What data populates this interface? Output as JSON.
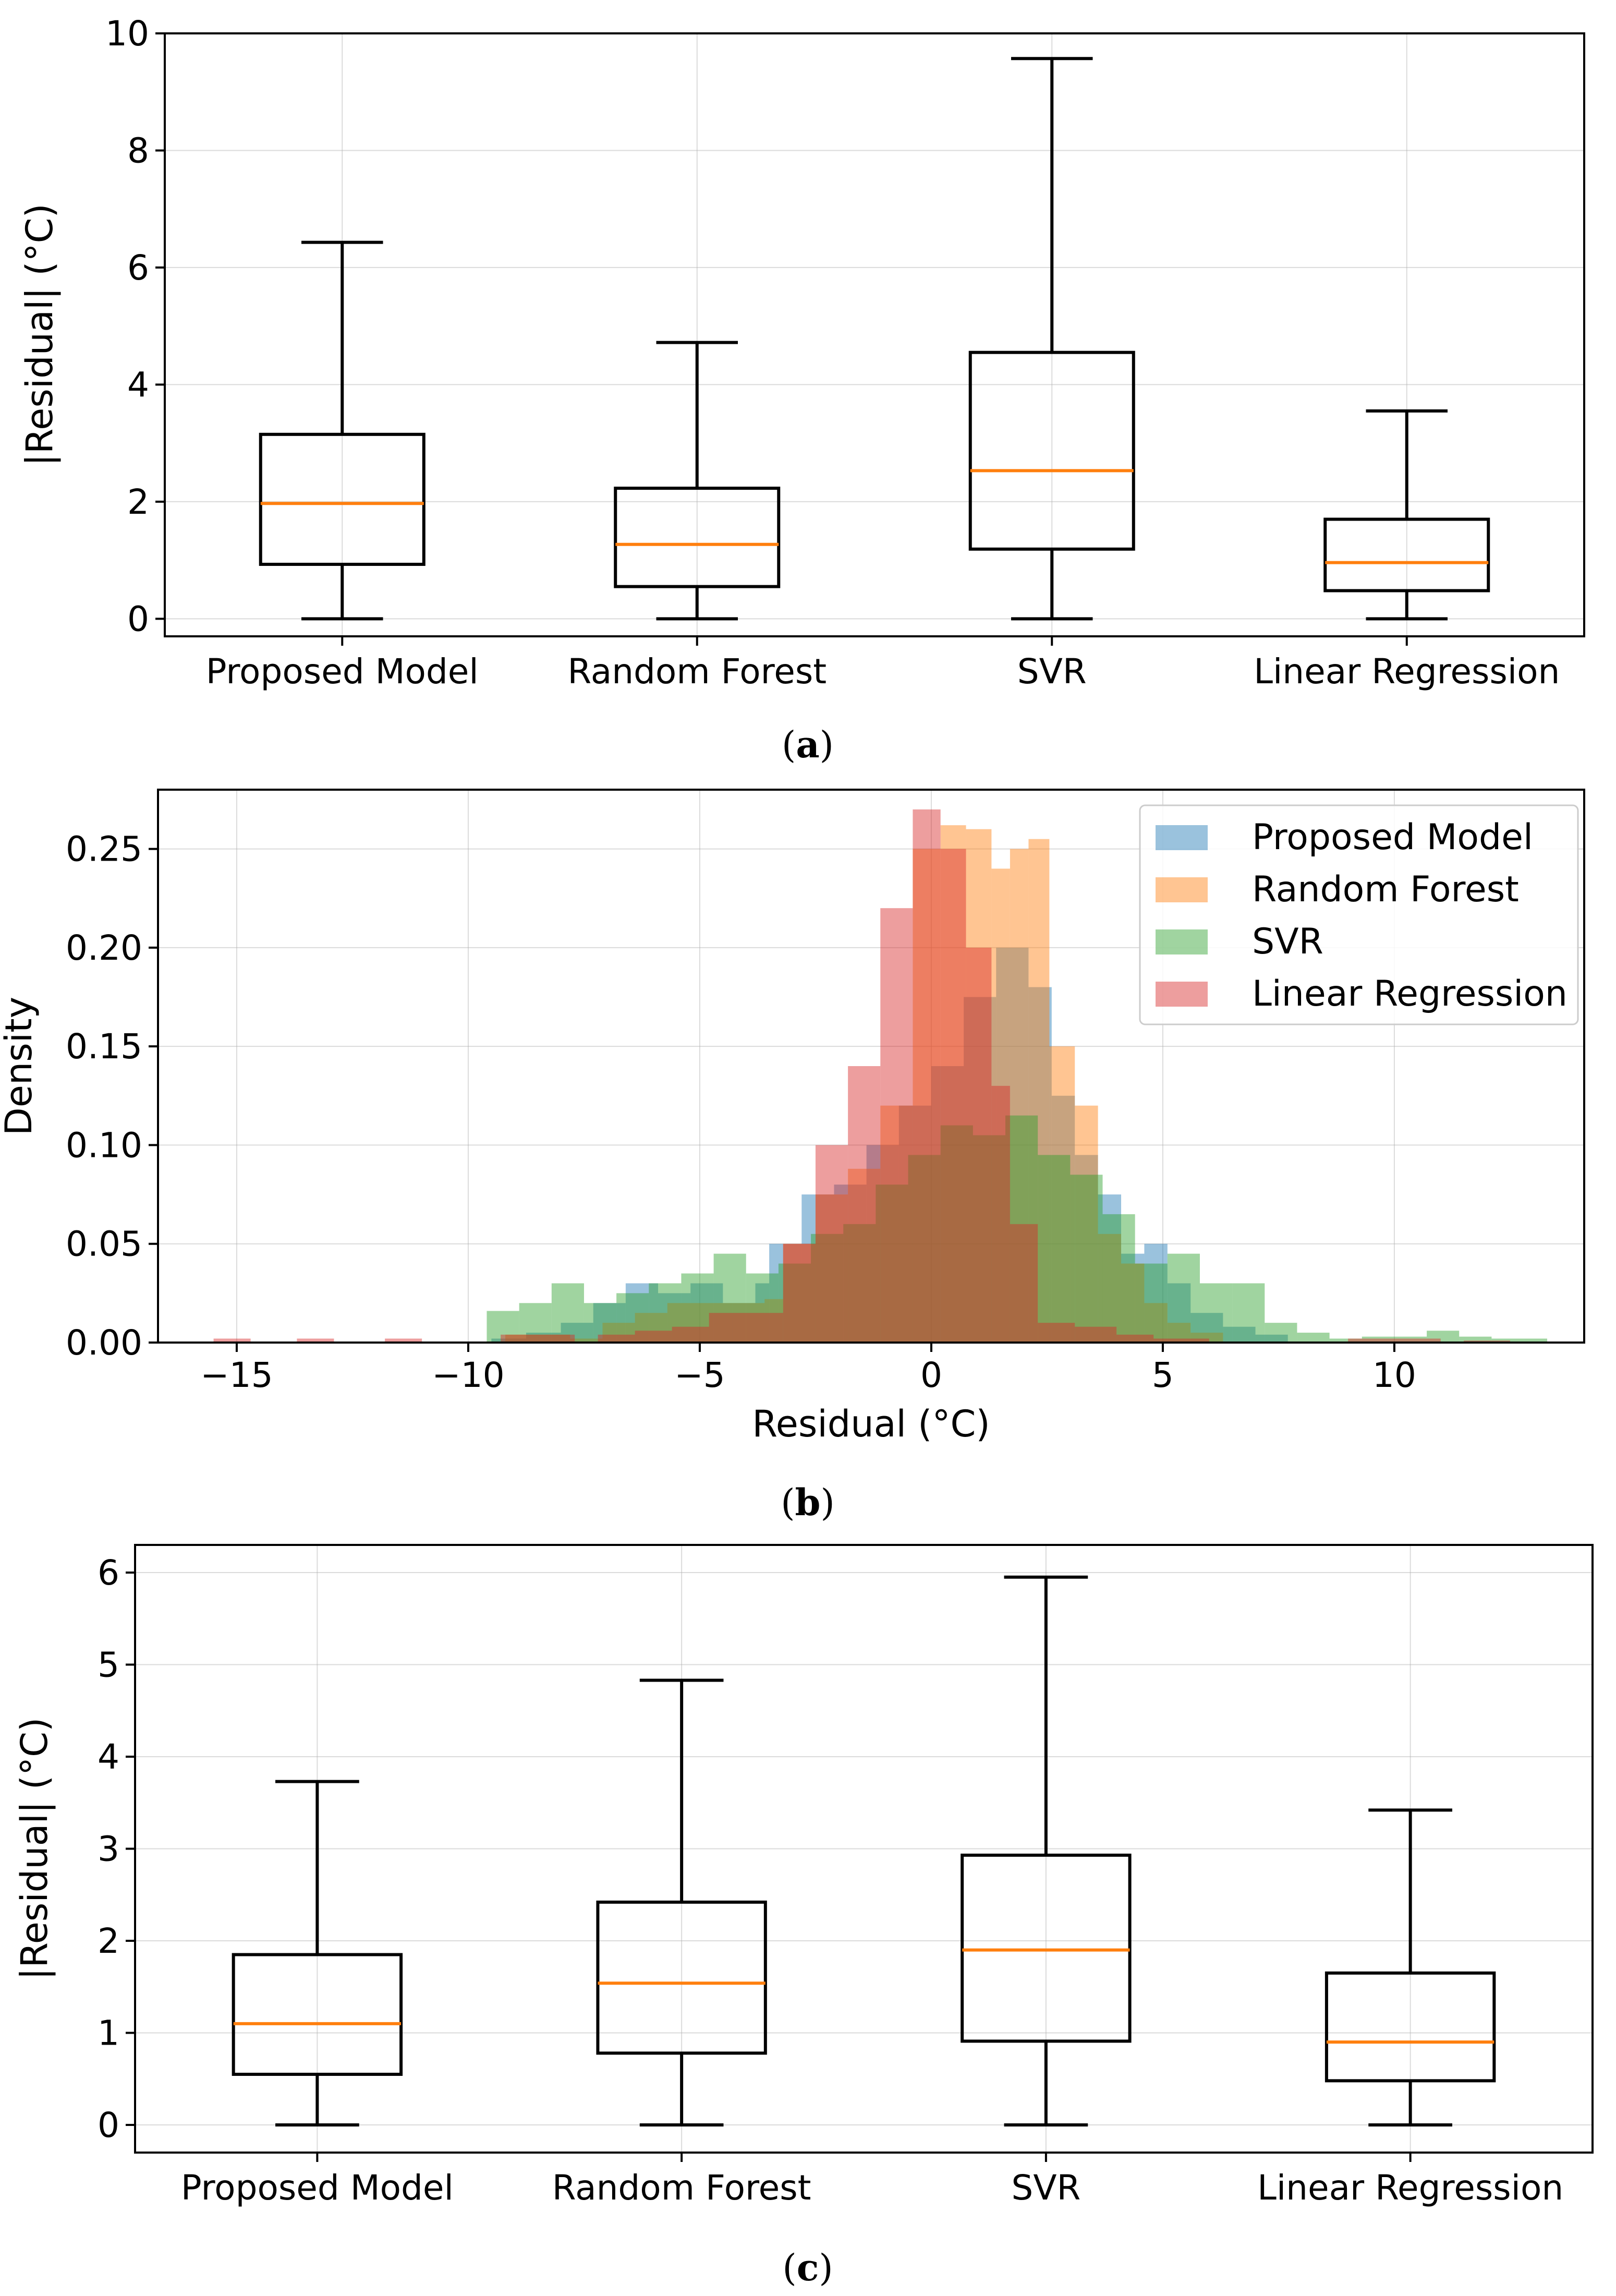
{
  "chart_data": [
    {
      "type": "box",
      "panel_label": "a",
      "title": "",
      "xlabel": "",
      "ylabel": "|Residual| (°C)",
      "ylim": [
        -0.3,
        10
      ],
      "yticks": [
        0,
        2,
        4,
        6,
        8,
        10
      ],
      "grid": true,
      "categories": [
        "Proposed Model",
        "Random Forest",
        "SVR",
        "Linear Regression"
      ],
      "boxes": [
        {
          "whisker_low": 0,
          "q1": 0.93,
          "median": 1.97,
          "q3": 3.15,
          "whisker_high": 6.43
        },
        {
          "whisker_low": 0,
          "q1": 0.55,
          "median": 1.27,
          "q3": 2.23,
          "whisker_high": 4.72
        },
        {
          "whisker_low": 0,
          "q1": 1.19,
          "median": 2.53,
          "q3": 4.55,
          "whisker_high": 9.57
        },
        {
          "whisker_low": 0,
          "q1": 0.48,
          "median": 0.96,
          "q3": 1.7,
          "whisker_high": 3.55
        }
      ],
      "colors": {
        "box": "#000000",
        "median": "#ff7f0e"
      }
    },
    {
      "type": "histogram",
      "panel_label": "b",
      "title": "",
      "xlabel": "Residual (°C)",
      "ylabel": "Density",
      "xlim": [
        -16.7,
        14.1
      ],
      "ylim": [
        0,
        0.28
      ],
      "xticks": [
        -15,
        -10,
        -5,
        0,
        5,
        10
      ],
      "xtick_labels": [
        "−15",
        "−10",
        "−5",
        "0",
        "5",
        "10"
      ],
      "yticks": [
        0.0,
        0.05,
        0.1,
        0.15,
        0.2,
        0.25
      ],
      "ytick_labels": [
        "0.00",
        "0.05",
        "0.10",
        "0.15",
        "0.20",
        "0.25"
      ],
      "grid": true,
      "legend_position": "top-right",
      "series": [
        {
          "name": "Proposed Model",
          "color": "#1f77b4",
          "bins": [
            [
              -9.5,
              -8.75,
              0.002
            ],
            [
              -8.75,
              -8,
              0.005
            ],
            [
              -8,
              -7.3,
              0.01
            ],
            [
              -7.3,
              -6.6,
              0.02
            ],
            [
              -6.6,
              -5.9,
              0.03
            ],
            [
              -5.9,
              -5.2,
              0.025
            ],
            [
              -5.2,
              -4.5,
              0.03
            ],
            [
              -4.5,
              -3.8,
              0.02
            ],
            [
              -3.8,
              -3.5,
              0.03
            ],
            [
              -3.5,
              -2.8,
              0.05
            ],
            [
              -2.8,
              -2.1,
              0.075
            ],
            [
              -2.1,
              -1.4,
              0.08
            ],
            [
              -1.4,
              -0.7,
              0.1
            ],
            [
              -0.7,
              0,
              0.12
            ],
            [
              0,
              0.7,
              0.14
            ],
            [
              0.7,
              1.4,
              0.175
            ],
            [
              1.4,
              2.1,
              0.2
            ],
            [
              2.1,
              2.6,
              0.18
            ],
            [
              2.6,
              3.1,
              0.125
            ],
            [
              3.1,
              3.6,
              0.095
            ],
            [
              3.6,
              4.1,
              0.075
            ],
            [
              4.1,
              4.6,
              0.045
            ],
            [
              4.6,
              5.1,
              0.05
            ],
            [
              5.1,
              5.6,
              0.03
            ],
            [
              5.6,
              6.3,
              0.015
            ],
            [
              6.3,
              7,
              0.008
            ],
            [
              7,
              7.7,
              0.004
            ]
          ]
        },
        {
          "name": "Random Forest",
          "color": "#ff7f0e",
          "bins": [
            [
              -9.2,
              -8.5,
              0.004
            ],
            [
              -8.5,
              -7.8,
              0.004
            ],
            [
              -7.8,
              -7.1,
              0.002
            ],
            [
              -7.1,
              -6.4,
              0.01
            ],
            [
              -6.4,
              -5.7,
              0.015
            ],
            [
              -5.7,
              -5,
              0.02
            ],
            [
              -5,
              -4.3,
              0.02
            ],
            [
              -4.3,
              -3.6,
              0.02
            ],
            [
              -3.6,
              -3.2,
              0.022
            ],
            [
              -3.2,
              -2.5,
              0.05
            ],
            [
              -2.5,
              -1.8,
              0.075
            ],
            [
              -1.8,
              -1.1,
              0.088
            ],
            [
              -1.1,
              -0.4,
              0.12
            ],
            [
              -0.4,
              0.2,
              0.25
            ],
            [
              0.2,
              0.75,
              0.262
            ],
            [
              0.75,
              1.3,
              0.26
            ],
            [
              1.3,
              1.7,
              0.24
            ],
            [
              1.7,
              2.1,
              0.25
            ],
            [
              2.1,
              2.55,
              0.255
            ],
            [
              2.55,
              3.1,
              0.15
            ],
            [
              3.1,
              3.6,
              0.12
            ],
            [
              3.6,
              4.1,
              0.055
            ],
            [
              4.1,
              4.6,
              0.04
            ],
            [
              4.6,
              5.1,
              0.02
            ],
            [
              5.1,
              5.6,
              0.01
            ],
            [
              5.6,
              6.3,
              0.005
            ]
          ]
        },
        {
          "name": "SVR",
          "color": "#2ca02c",
          "bins": [
            [
              -9.6,
              -8.9,
              0.016
            ],
            [
              -8.9,
              -8.2,
              0.02
            ],
            [
              -8.2,
              -7.5,
              0.03
            ],
            [
              -7.5,
              -6.8,
              0.02
            ],
            [
              -6.8,
              -6.1,
              0.025
            ],
            [
              -6.1,
              -5.4,
              0.03
            ],
            [
              -5.4,
              -4.7,
              0.035
            ],
            [
              -4.7,
              -4,
              0.045
            ],
            [
              -4,
              -3.3,
              0.035
            ],
            [
              -3.3,
              -2.6,
              0.04
            ],
            [
              -2.6,
              -1.9,
              0.055
            ],
            [
              -1.9,
              -1.2,
              0.06
            ],
            [
              -1.2,
              -0.5,
              0.08
            ],
            [
              -0.5,
              0.2,
              0.095
            ],
            [
              0.2,
              0.9,
              0.11
            ],
            [
              0.9,
              1.6,
              0.105
            ],
            [
              1.6,
              2.3,
              0.115
            ],
            [
              2.3,
              3,
              0.095
            ],
            [
              3,
              3.7,
              0.085
            ],
            [
              3.7,
              4.4,
              0.065
            ],
            [
              4.4,
              5.1,
              0.04
            ],
            [
              5.1,
              5.8,
              0.045
            ],
            [
              5.8,
              6.5,
              0.03
            ],
            [
              6.5,
              7.2,
              0.03
            ],
            [
              7.2,
              7.9,
              0.01
            ],
            [
              7.9,
              8.6,
              0.005
            ],
            [
              8.6,
              9.3,
              0.002
            ],
            [
              9.3,
              10,
              0.003
            ],
            [
              10,
              10.7,
              0.003
            ],
            [
              10.7,
              11.4,
              0.006
            ],
            [
              11.4,
              12.1,
              0.003
            ],
            [
              12.1,
              12.8,
              0.002
            ],
            [
              12.8,
              13.3,
              0.002
            ]
          ]
        },
        {
          "name": "Linear Regression",
          "color": "#d62728",
          "bins": [
            [
              -15.5,
              -14.7,
              0.002
            ],
            [
              -13.7,
              -12.9,
              0.002
            ],
            [
              -11.8,
              -11,
              0.002
            ],
            [
              -9.3,
              -8.5,
              0.004
            ],
            [
              -8.5,
              -7.7,
              0.004
            ],
            [
              -7.2,
              -6.4,
              0.004
            ],
            [
              -6.4,
              -5.6,
              0.006
            ],
            [
              -5.6,
              -4.8,
              0.008
            ],
            [
              -4.8,
              -4,
              0.015
            ],
            [
              -4,
              -3.2,
              0.015
            ],
            [
              -3.2,
              -2.5,
              0.05
            ],
            [
              -2.5,
              -1.8,
              0.1
            ],
            [
              -1.8,
              -1.1,
              0.14
            ],
            [
              -1.1,
              -0.4,
              0.22
            ],
            [
              -0.4,
              0.2,
              0.27
            ],
            [
              0.2,
              0.75,
              0.25
            ],
            [
              0.75,
              1.3,
              0.2
            ],
            [
              1.3,
              1.7,
              0.13
            ],
            [
              1.7,
              2.3,
              0.06
            ],
            [
              2.3,
              3.1,
              0.01
            ],
            [
              3.1,
              4,
              0.008
            ],
            [
              4,
              4.8,
              0.004
            ],
            [
              4.8,
              6,
              0.002
            ],
            [
              9,
              11,
              0.002
            ],
            [
              11.5,
              12.5,
              0.001
            ]
          ]
        }
      ],
      "bar_opacity": 0.45
    },
    {
      "type": "box",
      "panel_label": "c",
      "title": "",
      "xlabel": "",
      "ylabel": "|Residual| (°C)",
      "ylim": [
        -0.3,
        6.3
      ],
      "yticks": [
        0,
        1,
        2,
        3,
        4,
        5,
        6
      ],
      "grid": true,
      "categories": [
        "Proposed Model",
        "Random Forest",
        "SVR",
        "Linear Regression"
      ],
      "boxes": [
        {
          "whisker_low": 0,
          "q1": 0.55,
          "median": 1.1,
          "q3": 1.85,
          "whisker_high": 3.73
        },
        {
          "whisker_low": 0,
          "q1": 0.78,
          "median": 1.54,
          "q3": 2.42,
          "whisker_high": 4.83
        },
        {
          "whisker_low": 0,
          "q1": 0.91,
          "median": 1.9,
          "q3": 2.93,
          "whisker_high": 5.95
        },
        {
          "whisker_low": 0,
          "q1": 0.48,
          "median": 0.9,
          "q3": 1.65,
          "whisker_high": 3.42
        }
      ],
      "colors": {
        "box": "#000000",
        "median": "#ff7f0e"
      }
    }
  ]
}
